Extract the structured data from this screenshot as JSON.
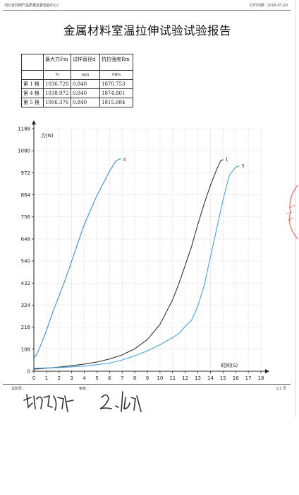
{
  "header": {
    "org": "河北省材网产品质量监督检验中心)",
    "print_date": "打印日期：2016-07-20"
  },
  "title": "金属材料室温拉伸试验试验报告",
  "table": {
    "headers": [
      "",
      "最大力Fm",
      "试样直径d",
      "抗拉强度Rm"
    ],
    "units": [
      "",
      "N",
      "mm",
      "MPa"
    ],
    "rows": [
      [
        "第 1 根",
        "1036.728",
        "0.840",
        "1870.753"
      ],
      [
        "第 4 根",
        "1038.972",
        "0.840",
        "1874.801"
      ],
      [
        "第 5 根",
        "1006.376",
        "0.840",
        "1815.984"
      ]
    ]
  },
  "chart_data": {
    "type": "line",
    "xlabel": "时间(S)",
    "ylabel": "力(N)",
    "xlim": [
      0,
      18
    ],
    "ylim": [
      0,
      1188
    ],
    "x_ticks": [
      "0",
      "1",
      "2",
      "3",
      "4",
      "5",
      "6",
      "7",
      "8",
      "9",
      "10",
      "11",
      "12",
      "13",
      "14",
      "15",
      "16",
      "17",
      "18"
    ],
    "y_ticks": [
      "0",
      "108",
      "216",
      "324",
      "432",
      "540",
      "648",
      "756",
      "864",
      "972",
      "1080",
      "1188"
    ],
    "grid": true,
    "line_color": "#3a8fd0",
    "series": [
      {
        "name": "4",
        "color": "#3a8fd0",
        "x": [
          0,
          0.2,
          0.5,
          1.0,
          1.5,
          2.0,
          2.5,
          3.0,
          3.5,
          4.0,
          4.5,
          5.0,
          5.5,
          6.0,
          6.5,
          6.8,
          6.9
        ],
        "y": [
          65,
          80,
          120,
          200,
          290,
          370,
          450,
          540,
          630,
          720,
          790,
          860,
          920,
          980,
          1030,
          1040,
          1038
        ]
      },
      {
        "name": "1",
        "color": "#333333",
        "x": [
          0,
          2,
          4,
          5,
          6,
          7,
          8,
          9,
          10,
          11,
          11.5,
          12,
          12.5,
          13,
          13.5,
          14,
          14.5,
          14.8,
          15.0
        ],
        "y": [
          10,
          20,
          35,
          45,
          60,
          80,
          110,
          155,
          230,
          350,
          430,
          520,
          610,
          720,
          820,
          910,
          990,
          1030,
          1037
        ]
      },
      {
        "name": "5",
        "color": "#4aa3dc",
        "x": [
          0,
          2,
          4,
          6,
          7,
          8,
          9,
          10,
          11,
          11.5,
          12,
          12.5,
          13,
          13.5,
          14,
          14.5,
          15,
          15.5,
          16.0,
          16.3
        ],
        "y": [
          15,
          18,
          25,
          40,
          55,
          75,
          100,
          130,
          165,
          185,
          220,
          250,
          320,
          420,
          560,
          700,
          840,
          960,
          1000,
          1006
        ]
      }
    ]
  },
  "footer": {
    "tester_label": "试验员：",
    "reviewer_label": "审核：",
    "page": "1/1 页"
  }
}
